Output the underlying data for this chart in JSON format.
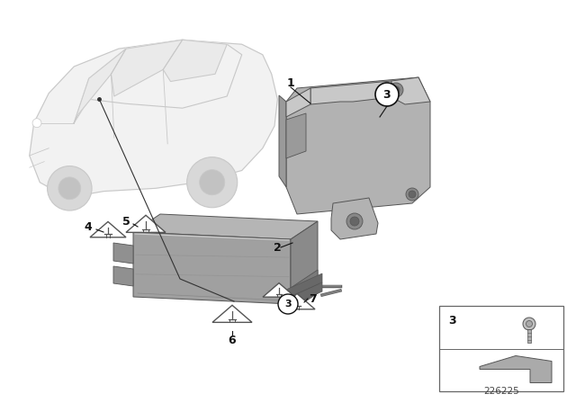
{
  "bg_color": "#ffffff",
  "line_color": "#555555",
  "gray_body": "#b8b8b8",
  "gray_dark": "#909090",
  "gray_light": "#d2d2d2",
  "gray_mid": "#a8a8a8",
  "diagram_id": "226225",
  "car_line_color": "#c8c8c8",
  "label_color": "#111111"
}
